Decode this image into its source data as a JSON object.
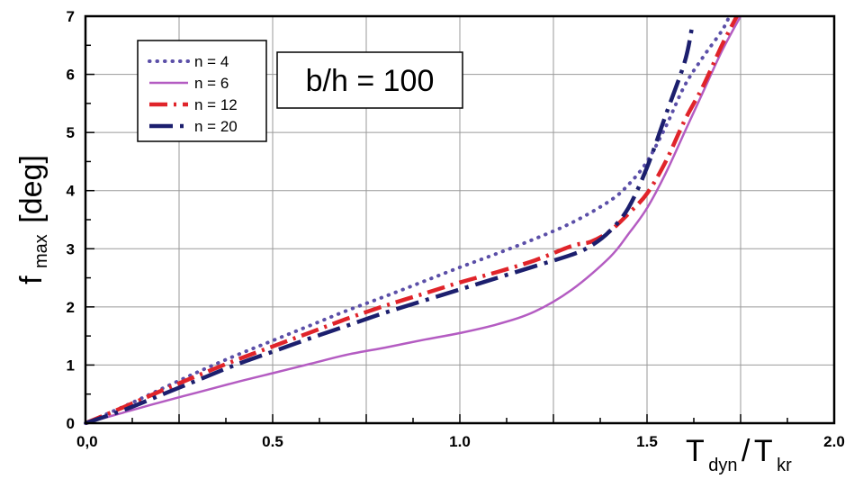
{
  "chart_data": {
    "type": "line",
    "annotation": "b/h = 100",
    "xlabel": {
      "main1": "T",
      "sub1": "dyn",
      "slash": "/",
      "main2": "T",
      "sub2": "kr"
    },
    "ylabel": {
      "main": "f",
      "sub": "max",
      "unit": "[deg]"
    },
    "xlim": [
      0,
      2.0
    ],
    "ylim": [
      0,
      7
    ],
    "grid": true,
    "legend_position": "top-left",
    "x_ticks": [
      {
        "value": 0,
        "label": "0,0"
      },
      {
        "value": 0.5,
        "label": "0.5"
      },
      {
        "value": 1.0,
        "label": "1.0"
      },
      {
        "value": 1.5,
        "label": "1.5"
      },
      {
        "value": 2.0,
        "label": "2.0"
      }
    ],
    "y_ticks": [
      {
        "value": 0,
        "label": "0"
      },
      {
        "value": 1,
        "label": "1"
      },
      {
        "value": 2,
        "label": "2"
      },
      {
        "value": 3,
        "label": "3"
      },
      {
        "value": 4,
        "label": "4"
      },
      {
        "value": 5,
        "label": "5"
      },
      {
        "value": 6,
        "label": "6"
      },
      {
        "value": 7,
        "label": "7"
      }
    ],
    "series": [
      {
        "name": "n = 4",
        "color": "#5b4fa8",
        "style": "dotted",
        "points": [
          [
            0.0,
            0.0
          ],
          [
            0.1,
            0.28
          ],
          [
            0.2,
            0.58
          ],
          [
            0.3,
            0.88
          ],
          [
            0.4,
            1.16
          ],
          [
            0.5,
            1.42
          ],
          [
            0.6,
            1.68
          ],
          [
            0.7,
            1.94
          ],
          [
            0.8,
            2.18
          ],
          [
            0.9,
            2.43
          ],
          [
            1.0,
            2.68
          ],
          [
            1.1,
            2.92
          ],
          [
            1.2,
            3.17
          ],
          [
            1.3,
            3.45
          ],
          [
            1.4,
            3.82
          ],
          [
            1.45,
            4.1
          ],
          [
            1.5,
            4.5
          ],
          [
            1.55,
            5.1
          ],
          [
            1.6,
            5.8
          ],
          [
            1.65,
            6.3
          ],
          [
            1.7,
            6.75
          ],
          [
            1.72,
            7.0
          ]
        ]
      },
      {
        "name": "n = 6",
        "color": "#b45cc2",
        "style": "solid",
        "points": [
          [
            0.0,
            0.0
          ],
          [
            0.1,
            0.18
          ],
          [
            0.2,
            0.36
          ],
          [
            0.3,
            0.53
          ],
          [
            0.4,
            0.7
          ],
          [
            0.5,
            0.86
          ],
          [
            0.6,
            1.02
          ],
          [
            0.7,
            1.18
          ],
          [
            0.8,
            1.3
          ],
          [
            0.9,
            1.43
          ],
          [
            1.0,
            1.55
          ],
          [
            1.1,
            1.7
          ],
          [
            1.2,
            1.92
          ],
          [
            1.3,
            2.3
          ],
          [
            1.4,
            2.85
          ],
          [
            1.45,
            3.25
          ],
          [
            1.5,
            3.7
          ],
          [
            1.55,
            4.3
          ],
          [
            1.6,
            5.0
          ],
          [
            1.65,
            5.7
          ],
          [
            1.7,
            6.4
          ],
          [
            1.75,
            7.0
          ]
        ]
      },
      {
        "name": "n = 12",
        "color": "#e0242a",
        "style": "dashdot",
        "points": [
          [
            0.0,
            0.0
          ],
          [
            0.1,
            0.27
          ],
          [
            0.2,
            0.55
          ],
          [
            0.3,
            0.82
          ],
          [
            0.4,
            1.08
          ],
          [
            0.5,
            1.32
          ],
          [
            0.6,
            1.56
          ],
          [
            0.7,
            1.8
          ],
          [
            0.8,
            2.02
          ],
          [
            0.9,
            2.22
          ],
          [
            1.0,
            2.42
          ],
          [
            1.1,
            2.6
          ],
          [
            1.2,
            2.8
          ],
          [
            1.3,
            3.05
          ],
          [
            1.35,
            3.12
          ],
          [
            1.4,
            3.3
          ],
          [
            1.45,
            3.6
          ],
          [
            1.5,
            3.95
          ],
          [
            1.55,
            4.5
          ],
          [
            1.6,
            5.2
          ],
          [
            1.65,
            5.8
          ],
          [
            1.7,
            6.5
          ],
          [
            1.74,
            7.0
          ]
        ]
      },
      {
        "name": "n = 20",
        "color": "#1c1f6e",
        "style": "dashdot-long",
        "points": [
          [
            0.0,
            0.0
          ],
          [
            0.1,
            0.22
          ],
          [
            0.2,
            0.48
          ],
          [
            0.3,
            0.74
          ],
          [
            0.4,
            1.0
          ],
          [
            0.5,
            1.23
          ],
          [
            0.6,
            1.46
          ],
          [
            0.7,
            1.68
          ],
          [
            0.8,
            1.9
          ],
          [
            0.9,
            2.1
          ],
          [
            1.0,
            2.3
          ],
          [
            1.1,
            2.5
          ],
          [
            1.2,
            2.7
          ],
          [
            1.3,
            2.9
          ],
          [
            1.35,
            3.05
          ],
          [
            1.4,
            3.3
          ],
          [
            1.45,
            3.7
          ],
          [
            1.5,
            4.4
          ],
          [
            1.55,
            5.3
          ],
          [
            1.6,
            6.2
          ],
          [
            1.62,
            6.8
          ]
        ]
      }
    ]
  }
}
